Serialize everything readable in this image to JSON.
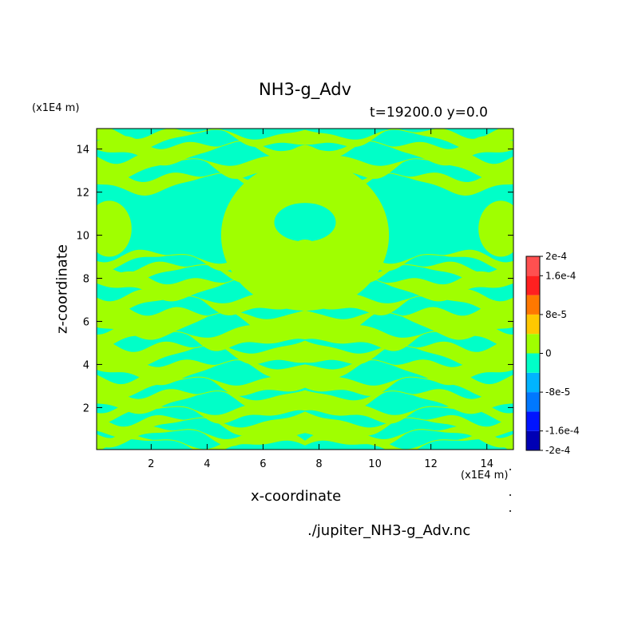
{
  "chart_data": {
    "type": "heatmap",
    "title": "NH3-g_Adv",
    "subtitle": "t=19200.0 y=0.0",
    "xlabel": "x-coordinate",
    "ylabel": "z-coordinate",
    "x_unit": "(x1E4 m)",
    "z_unit": "(x1E4 m)",
    "source": "./jupiter_NH3-g_Adv.nc",
    "xlim": [
      0.05,
      14.95
    ],
    "ylim": [
      0.05,
      14.95
    ],
    "x_ticks": [
      2,
      4,
      6,
      8,
      10,
      12,
      14
    ],
    "y_ticks": [
      2,
      4,
      6,
      8,
      10,
      12,
      14
    ],
    "x_tick_labels": [
      "2",
      "4",
      "6",
      "8",
      "10",
      "12",
      "14"
    ],
    "y_tick_labels": [
      "2",
      "4",
      "6",
      "8",
      "10",
      "12",
      "14"
    ],
    "colorbar": {
      "levels": [
        -0.0002,
        -0.00016,
        -0.00012,
        -8e-05,
        -4e-05,
        0,
        4e-05,
        8e-05,
        0.00012,
        0.00016,
        0.0002
      ],
      "colors": [
        "#0000b4",
        "#0014ff",
        "#0078ff",
        "#00b4ff",
        "#00ffc8",
        "#a0ff00",
        "#ffc800",
        "#ff7800",
        "#ff2020",
        "#ff5050"
      ],
      "labels": [
        "2e-4",
        "1.6e-4",
        "8e-5",
        "0",
        "-8e-5",
        "-1.6e-4",
        "-2e-4"
      ],
      "label_values": [
        0.0002,
        0.00016,
        8e-05,
        0,
        -8e-05,
        -0.00016,
        -0.0002
      ]
    },
    "field_description": "values cluster in two bins: slightly negative (-4e-5..0, cyan) and slightly positive (0..4e-5, green); pattern is mirror-symmetric about x=7.5",
    "bands": [
      {
        "z": 0.35,
        "h": 0.22,
        "p": 0.0
      },
      {
        "z": 0.75,
        "h": 0.3,
        "p": 1.3
      },
      {
        "z": 1.25,
        "h": 0.35,
        "p": 2.1
      },
      {
        "z": 1.85,
        "h": 0.35,
        "p": 0.7
      },
      {
        "z": 2.45,
        "h": 0.45,
        "p": 3.0
      },
      {
        "z": 3.15,
        "h": 0.45,
        "p": 1.9
      },
      {
        "z": 3.85,
        "h": 0.5,
        "p": 4.2
      },
      {
        "z": 4.6,
        "h": 0.5,
        "p": 2.7
      },
      {
        "z": 5.35,
        "h": 0.55,
        "p": 0.4
      },
      {
        "z": 6.1,
        "h": 0.7,
        "p": 3.6
      },
      {
        "z": 6.95,
        "h": 0.5,
        "p": 1.2
      },
      {
        "z": 7.7,
        "h": 0.45,
        "p": 4.8
      },
      {
        "z": 8.35,
        "h": 0.4,
        "p": 2.2
      },
      {
        "z": 8.9,
        "h": 0.3,
        "p": 0.9
      },
      {
        "z": 12.55,
        "h": 0.4,
        "p": 3.3
      },
      {
        "z": 13.3,
        "h": 0.55,
        "p": 1.6
      },
      {
        "z": 14.0,
        "h": 0.45,
        "p": 4.4
      },
      {
        "z": 14.6,
        "h": 0.35,
        "p": 2.9
      }
    ],
    "central_feature": {
      "center": [
        7.5,
        10.0
      ],
      "radius": [
        3.0,
        3.5
      ]
    }
  }
}
